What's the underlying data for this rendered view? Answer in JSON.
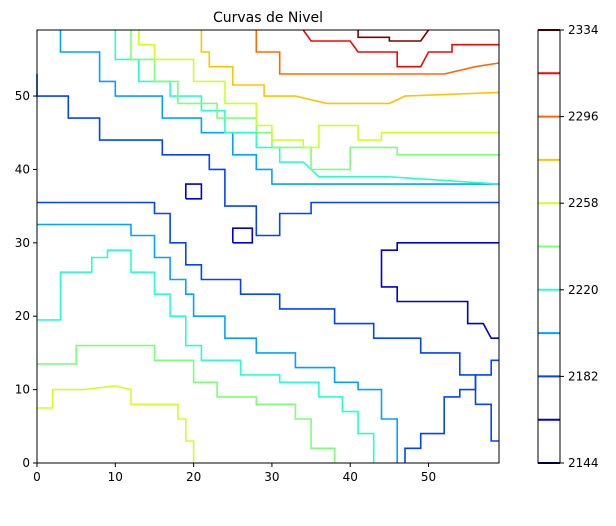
{
  "chart_data": {
    "type": "contour",
    "title": "Curvas de Nivel",
    "xlabel": "",
    "ylabel": "",
    "xlim": [
      0,
      59
    ],
    "ylim": [
      0,
      59
    ],
    "xticks": [
      0,
      10,
      20,
      30,
      40,
      50
    ],
    "yticks": [
      0,
      10,
      20,
      30,
      40,
      50
    ],
    "grid": false,
    "levels": [
      {
        "value": 2144,
        "color": "#00007f"
      },
      {
        "value": 2163,
        "color": "#0000d4"
      },
      {
        "value": 2182,
        "color": "#0044ff"
      },
      {
        "value": 2201,
        "color": "#00a4ff"
      },
      {
        "value": 2220,
        "color": "#29ffce"
      },
      {
        "value": 2239,
        "color": "#7dff7a"
      },
      {
        "value": 2258,
        "color": "#ceff29"
      },
      {
        "value": 2277,
        "color": "#ffc400"
      },
      {
        "value": 2296,
        "color": "#ff6800"
      },
      {
        "value": 2315,
        "color": "#f10800"
      },
      {
        "value": 2334,
        "color": "#7f0000"
      }
    ],
    "colorbar_ticks": [
      2144,
      2182,
      2220,
      2258,
      2296,
      2334
    ],
    "contours": [
      {
        "level": 2163,
        "color": "#0000d4",
        "points": [
          [
            19,
            36
          ],
          [
            21,
            36
          ],
          [
            21,
            38
          ],
          [
            19,
            38
          ],
          [
            19,
            36
          ]
        ]
      },
      {
        "level": 2163,
        "color": "#0000d4",
        "points": [
          [
            25,
            30
          ],
          [
            27.5,
            30
          ],
          [
            27.5,
            32
          ],
          [
            25,
            32
          ],
          [
            25,
            30
          ]
        ]
      },
      {
        "level": 2163,
        "color": "#0000d4",
        "points": [
          [
            59,
            30
          ],
          [
            46,
            30
          ],
          [
            46,
            29
          ],
          [
            44,
            29
          ],
          [
            44,
            26
          ],
          [
            44,
            24
          ],
          [
            46,
            24
          ],
          [
            46,
            22
          ],
          [
            55,
            22
          ],
          [
            55,
            19
          ],
          [
            57,
            19
          ],
          [
            58,
            17
          ],
          [
            59,
            17
          ]
        ]
      },
      {
        "level": 2182,
        "color": "#0044ff",
        "points": [
          [
            0,
            35.5
          ],
          [
            15,
            35.5
          ],
          [
            15,
            34
          ],
          [
            17,
            34
          ],
          [
            17,
            30
          ],
          [
            19,
            30
          ],
          [
            19,
            27
          ],
          [
            21,
            27
          ],
          [
            21,
            25
          ],
          [
            26,
            25
          ],
          [
            26,
            23
          ],
          [
            31,
            23
          ],
          [
            31,
            21
          ],
          [
            38,
            21
          ],
          [
            38,
            19
          ],
          [
            43,
            19
          ],
          [
            43,
            17
          ],
          [
            49,
            17
          ],
          [
            49,
            15
          ],
          [
            54,
            15
          ],
          [
            54,
            12
          ],
          [
            56,
            12
          ],
          [
            56,
            8
          ],
          [
            58,
            8
          ],
          [
            58,
            3
          ],
          [
            59,
            3
          ]
        ]
      },
      {
        "level": 2182,
        "color": "#0044ff",
        "points": [
          [
            59,
            35.5
          ],
          [
            35,
            35.5
          ],
          [
            35,
            34
          ],
          [
            31,
            34
          ],
          [
            31,
            31
          ],
          [
            28,
            31
          ],
          [
            28,
            35
          ],
          [
            24,
            35
          ],
          [
            24,
            37
          ],
          [
            24,
            40
          ],
          [
            22,
            40
          ],
          [
            22,
            42
          ],
          [
            16,
            42
          ],
          [
            16,
            44
          ],
          [
            8,
            44
          ],
          [
            8,
            47
          ],
          [
            4,
            47
          ],
          [
            4,
            50
          ],
          [
            0,
            50
          ],
          [
            0,
            53
          ]
        ]
      },
      {
        "level": 2182,
        "color": "#0044ff",
        "points": [
          [
            47,
            0
          ],
          [
            47,
            2
          ],
          [
            49,
            2
          ],
          [
            49,
            4
          ],
          [
            52,
            4
          ],
          [
            52,
            9
          ],
          [
            54,
            9
          ],
          [
            54,
            10
          ],
          [
            56,
            10
          ],
          [
            56,
            12
          ],
          [
            58,
            12
          ],
          [
            58,
            14
          ],
          [
            59,
            14
          ]
        ]
      },
      {
        "level": 2201,
        "color": "#00a4ff",
        "points": [
          [
            0,
            32.5
          ],
          [
            12,
            32.5
          ],
          [
            12,
            31
          ],
          [
            15,
            31
          ],
          [
            15,
            28
          ],
          [
            17,
            28
          ],
          [
            17,
            25
          ],
          [
            19,
            25
          ],
          [
            19,
            23
          ],
          [
            20,
            23
          ],
          [
            20,
            20
          ],
          [
            24,
            20
          ],
          [
            24,
            17
          ],
          [
            28,
            17
          ],
          [
            28,
            15
          ],
          [
            33,
            15
          ],
          [
            33,
            13
          ],
          [
            38,
            13
          ],
          [
            38,
            11
          ],
          [
            41,
            11
          ],
          [
            41,
            10
          ],
          [
            44,
            10
          ],
          [
            44,
            6
          ],
          [
            46,
            6
          ],
          [
            46,
            0
          ]
        ]
      },
      {
        "level": 2201,
        "color": "#00a4ff",
        "points": [
          [
            59,
            38
          ],
          [
            42,
            38
          ],
          [
            37,
            38
          ],
          [
            34,
            38
          ],
          [
            32,
            38
          ],
          [
            30,
            38
          ],
          [
            30,
            40
          ],
          [
            28,
            40
          ],
          [
            28,
            42
          ],
          [
            25,
            42
          ],
          [
            25,
            45
          ],
          [
            21,
            45
          ],
          [
            21,
            47
          ],
          [
            16,
            47
          ],
          [
            16,
            50
          ],
          [
            10,
            50
          ],
          [
            10,
            52
          ],
          [
            8,
            52
          ],
          [
            8,
            56
          ],
          [
            3,
            56
          ],
          [
            3,
            59
          ]
        ]
      },
      {
        "level": 2220,
        "color": "#29ffce",
        "points": [
          [
            0,
            19.5
          ],
          [
            3,
            19.5
          ],
          [
            3,
            26
          ],
          [
            7,
            26
          ],
          [
            7,
            28
          ],
          [
            9,
            28
          ],
          [
            9,
            29
          ],
          [
            12,
            29
          ],
          [
            12,
            26
          ],
          [
            15,
            26
          ],
          [
            15,
            23
          ],
          [
            17,
            23
          ],
          [
            17,
            20
          ],
          [
            19,
            20
          ],
          [
            19,
            16
          ],
          [
            21,
            16
          ],
          [
            21,
            14
          ],
          [
            26,
            14
          ],
          [
            26,
            12
          ],
          [
            31,
            12
          ],
          [
            31,
            11
          ],
          [
            36,
            11
          ],
          [
            36,
            9
          ],
          [
            39,
            9
          ],
          [
            39,
            7
          ],
          [
            41,
            7
          ],
          [
            41,
            4
          ],
          [
            43,
            4
          ],
          [
            43,
            0
          ]
        ]
      },
      {
        "level": 2220,
        "color": "#29ffce",
        "points": [
          [
            59,
            38
          ],
          [
            45,
            39
          ],
          [
            36,
            39
          ],
          [
            34,
            41
          ],
          [
            31,
            41
          ],
          [
            31,
            43
          ],
          [
            28,
            43
          ],
          [
            28,
            45
          ],
          [
            24,
            45
          ],
          [
            24,
            48
          ],
          [
            21,
            48
          ],
          [
            21,
            50
          ],
          [
            17,
            50
          ],
          [
            17,
            52
          ],
          [
            13,
            52
          ],
          [
            13,
            55
          ],
          [
            10,
            55
          ],
          [
            10,
            59
          ]
        ]
      },
      {
        "level": 2239,
        "color": "#7dff7a",
        "points": [
          [
            0,
            13.5
          ],
          [
            5,
            13.5
          ],
          [
            5,
            16
          ],
          [
            12,
            16
          ],
          [
            15,
            16
          ],
          [
            15,
            14
          ],
          [
            20,
            14
          ],
          [
            20,
            11
          ],
          [
            23,
            11
          ],
          [
            23,
            9
          ],
          [
            28,
            9
          ],
          [
            28,
            8
          ],
          [
            33,
            8
          ],
          [
            33,
            6
          ],
          [
            35,
            6
          ],
          [
            35,
            2
          ],
          [
            38,
            2
          ],
          [
            38,
            0
          ]
        ]
      },
      {
        "level": 2239,
        "color": "#7dff7a",
        "points": [
          [
            59,
            42
          ],
          [
            46,
            42
          ],
          [
            46,
            43
          ],
          [
            40,
            43
          ],
          [
            40,
            40
          ],
          [
            35,
            40
          ],
          [
            35,
            43
          ],
          [
            30,
            43
          ],
          [
            30,
            45
          ],
          [
            28,
            45
          ],
          [
            28,
            47
          ],
          [
            23,
            47
          ],
          [
            23,
            49
          ],
          [
            18,
            49
          ],
          [
            18,
            52
          ],
          [
            15,
            52
          ],
          [
            15,
            55
          ],
          [
            12,
            55
          ],
          [
            12,
            59
          ]
        ]
      },
      {
        "level": 2258,
        "color": "#ceff29",
        "points": [
          [
            0,
            7.5
          ],
          [
            2,
            7.5
          ],
          [
            2,
            10
          ],
          [
            6,
            10
          ],
          [
            10,
            10.5
          ],
          [
            12,
            10
          ],
          [
            12,
            8
          ],
          [
            18,
            8
          ],
          [
            18,
            6
          ],
          [
            19,
            6
          ],
          [
            19,
            3
          ],
          [
            20,
            3
          ],
          [
            20,
            0
          ]
        ]
      },
      {
        "level": 2258,
        "color": "#ceff29",
        "points": [
          [
            59,
            45
          ],
          [
            44,
            45
          ],
          [
            44,
            44
          ],
          [
            41,
            44
          ],
          [
            41,
            46
          ],
          [
            36,
            46
          ],
          [
            36,
            43
          ],
          [
            34,
            43
          ],
          [
            34,
            44
          ],
          [
            30,
            44
          ],
          [
            30,
            46
          ],
          [
            28,
            46
          ],
          [
            28,
            49
          ],
          [
            24,
            49
          ],
          [
            24,
            52
          ],
          [
            20,
            52
          ],
          [
            20,
            55
          ],
          [
            15,
            55
          ],
          [
            15,
            57
          ],
          [
            13,
            57
          ],
          [
            13,
            59
          ]
        ]
      },
      {
        "level": 2277,
        "color": "#ffc400",
        "points": [
          [
            59,
            50.5
          ],
          [
            47,
            50
          ],
          [
            45,
            49
          ],
          [
            37,
            49
          ],
          [
            33,
            50
          ],
          [
            29,
            50
          ],
          [
            29,
            51.5
          ],
          [
            25,
            51.5
          ],
          [
            25,
            54
          ],
          [
            22,
            54
          ],
          [
            22,
            56
          ],
          [
            21,
            56
          ],
          [
            21,
            59
          ]
        ]
      },
      {
        "level": 2296,
        "color": "#ff6800",
        "points": [
          [
            59,
            54.5
          ],
          [
            56,
            54
          ],
          [
            52,
            53
          ],
          [
            44,
            53
          ],
          [
            39,
            53
          ],
          [
            35,
            53
          ],
          [
            31,
            53
          ],
          [
            31,
            56
          ],
          [
            28,
            56
          ],
          [
            28,
            59
          ]
        ]
      },
      {
        "level": 2315,
        "color": "#f10800",
        "points": [
          [
            34,
            59
          ],
          [
            35,
            57.5
          ],
          [
            40,
            57.5
          ],
          [
            41,
            56
          ],
          [
            46,
            56
          ],
          [
            46,
            54
          ],
          [
            49,
            54
          ],
          [
            50,
            56
          ],
          [
            53,
            56
          ],
          [
            53,
            57
          ],
          [
            59,
            57
          ]
        ]
      },
      {
        "level": 2334,
        "color": "#7f0000",
        "points": [
          [
            41,
            59
          ],
          [
            41,
            58
          ],
          [
            45,
            58
          ],
          [
            45,
            57.5
          ],
          [
            49,
            57.5
          ],
          [
            50,
            59
          ]
        ]
      }
    ]
  }
}
